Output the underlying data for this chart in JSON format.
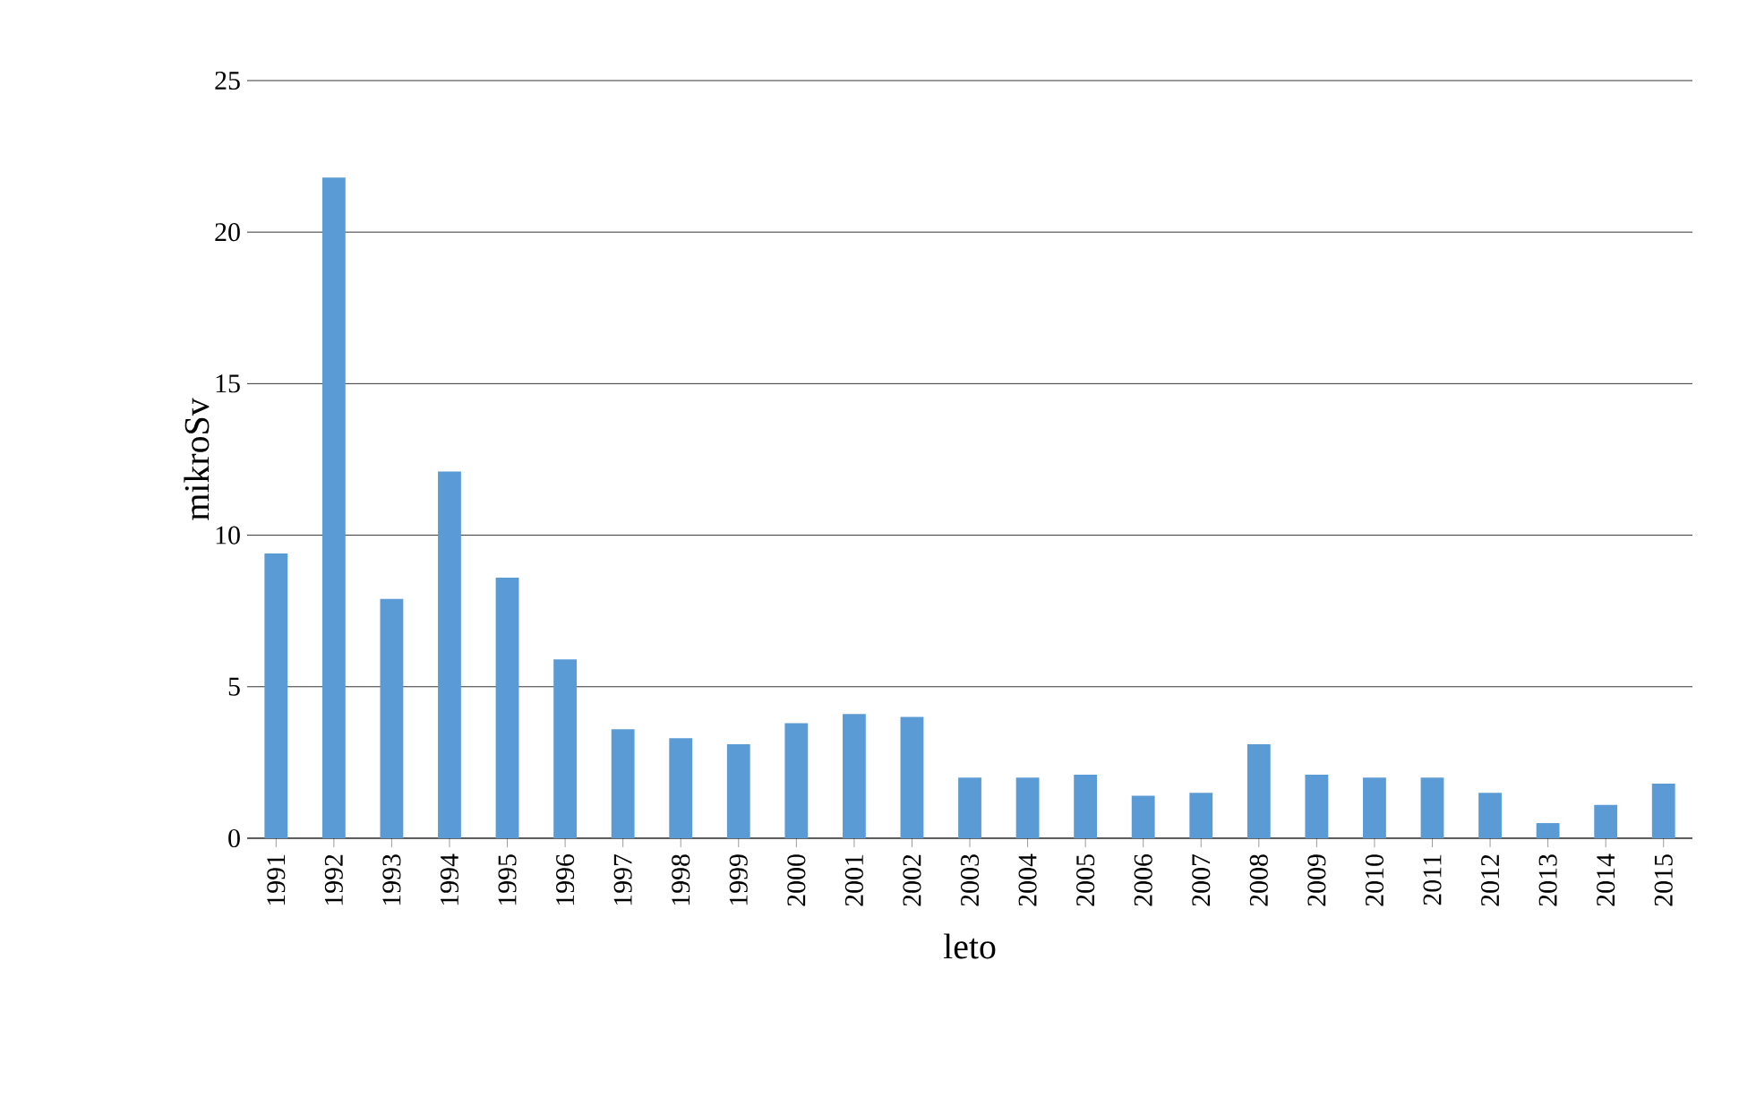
{
  "chart_data": {
    "type": "bar",
    "xlabel": "leto",
    "ylabel": "mikroSv",
    "categories": [
      "1991",
      "1992",
      "1993",
      "1994",
      "1995",
      "1996",
      "1997",
      "1998",
      "1999",
      "2000",
      "2001",
      "2002",
      "2003",
      "2004",
      "2005",
      "2006",
      "2007",
      "2008",
      "2009",
      "2010",
      "2011",
      "2012",
      "2013",
      "2014",
      "2015"
    ],
    "values": [
      9.4,
      21.8,
      7.9,
      12.1,
      8.6,
      5.9,
      3.6,
      3.3,
      3.1,
      3.8,
      4.1,
      4.0,
      2.0,
      2.0,
      2.1,
      1.4,
      1.5,
      3.1,
      2.1,
      2.0,
      2.0,
      1.5,
      0.5,
      1.1,
      1.8
    ],
    "color": "#5b9bd5",
    "ylim": [
      0,
      25
    ],
    "yticks": [
      0,
      5,
      10,
      15,
      20,
      25
    ],
    "grid": "y"
  }
}
